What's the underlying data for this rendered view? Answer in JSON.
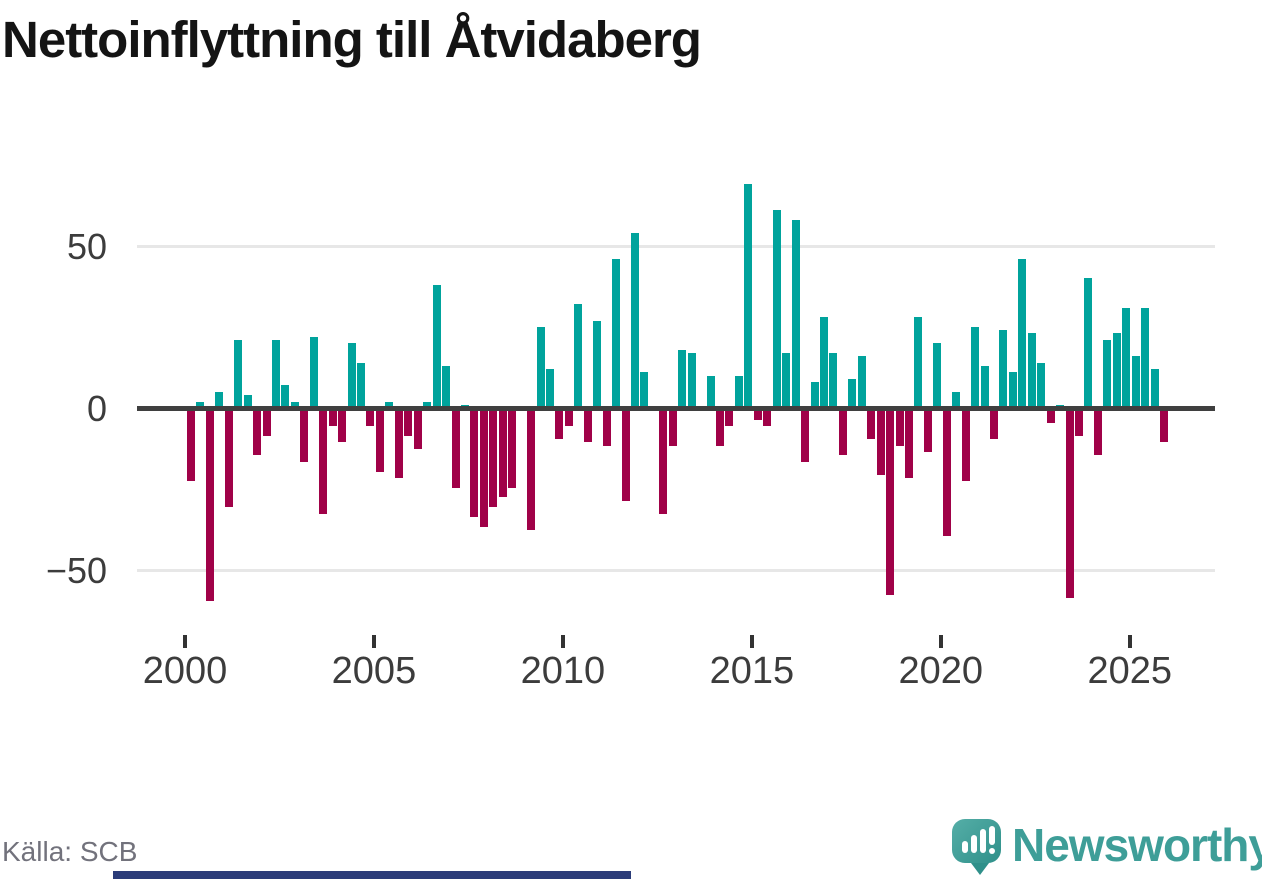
{
  "title": "Nettoinflyttning till Åtvidaberg",
  "source": "Källa: SCB",
  "brand": {
    "name": "Newsworthy",
    "logo_icon": "speech-bubble-bar-chart-icon"
  },
  "colors": {
    "positive": "#00A39C",
    "negative": "#A00148",
    "zero_axis": "#3F3F3F",
    "gridline": "#E7E7E7",
    "brand_teal": "#3E9E98",
    "bottom_bar": "#2B3C79"
  },
  "chart_data": {
    "type": "bar",
    "title": "Nettoinflyttning till Åtvidaberg",
    "x_unit": "quarter",
    "start_period": "2000Q1",
    "end_period": "2025Q4",
    "xlabel": "",
    "ylabel": "",
    "x_tick_labels": [
      "2000",
      "2005",
      "2010",
      "2015",
      "2020",
      "2025"
    ],
    "y_ticks": [
      50,
      0,
      -50
    ],
    "y_tick_labels": [
      "50",
      "0",
      "−50"
    ],
    "ylim": [
      -73,
      75
    ],
    "grid": "horizontal",
    "legend": "none",
    "positive_color_meaning": "net in-migration",
    "negative_color_meaning": "net out-migration",
    "values": [
      -22,
      2,
      -59,
      5,
      -30,
      21,
      4,
      -14,
      -8,
      21,
      7,
      2,
      -16,
      22,
      -32,
      -5,
      -10,
      20,
      14,
      -5,
      -19,
      2,
      -21,
      -8,
      -12,
      2,
      38,
      13,
      -24,
      1,
      -33,
      -36,
      -30,
      -27,
      -24,
      0,
      -37,
      25,
      12,
      -9,
      -5,
      32,
      -10,
      27,
      -11,
      46,
      -28,
      54,
      11,
      0,
      -32,
      -11,
      18,
      17,
      0,
      10,
      -11,
      -5,
      10,
      69,
      -3,
      -5,
      61,
      17,
      58,
      -16,
      8,
      28,
      17,
      -14,
      9,
      16,
      -9,
      -20,
      -57,
      -11,
      -21,
      28,
      -13,
      20,
      -39,
      5,
      -22,
      25,
      13,
      -9,
      24,
      11,
      46,
      23,
      14,
      -4,
      1,
      -58,
      -8,
      40,
      -14,
      21,
      23,
      31,
      16,
      31,
      12,
      -10
    ]
  }
}
